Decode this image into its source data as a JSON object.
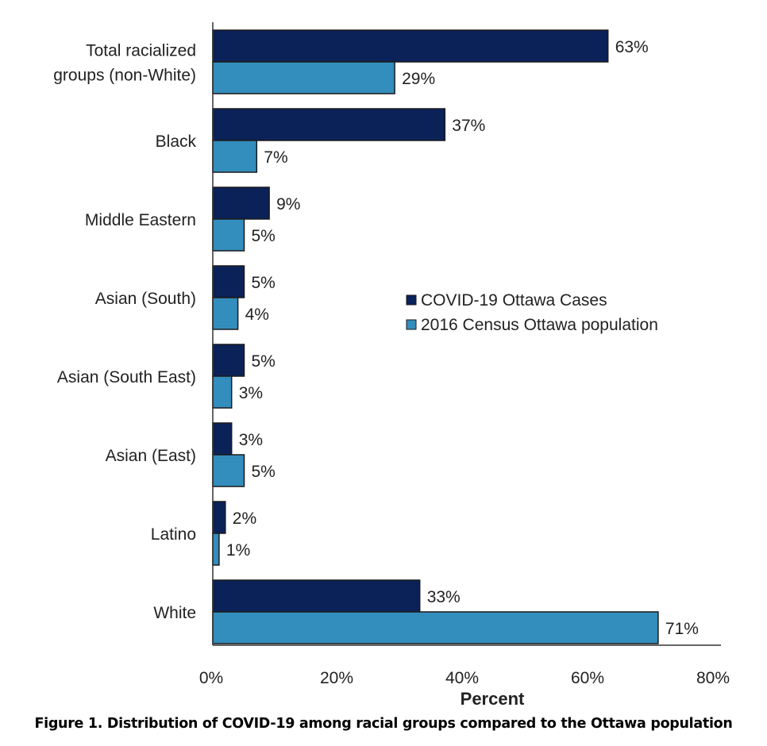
{
  "chart_data": {
    "type": "bar",
    "orientation": "horizontal",
    "categories": [
      "Total racialized groups (non-White)",
      "Black",
      "Middle Eastern",
      "Asian (South)",
      "Asian (South East)",
      "Asian (East)",
      "Latino",
      "White"
    ],
    "category_lines": [
      [
        "Total racialized",
        "groups (non-White)"
      ],
      [
        "Black"
      ],
      [
        "Middle Eastern"
      ],
      [
        "Asian (South)"
      ],
      [
        "Asian (South East)"
      ],
      [
        "Asian (East)"
      ],
      [
        "Latino"
      ],
      [
        "White"
      ]
    ],
    "series": [
      {
        "name": "COVID-19 Ottawa Cases",
        "color": "#0b2259",
        "values": [
          63,
          37,
          9,
          5,
          5,
          3,
          2,
          33
        ]
      },
      {
        "name": "2016 Census Ottawa population",
        "color": "#338dbd",
        "values": [
          29,
          7,
          5,
          4,
          3,
          5,
          1,
          71
        ]
      }
    ],
    "xlabel": "Percent",
    "xlim": [
      0,
      80
    ],
    "xticks": [
      0,
      20,
      40,
      60,
      80
    ],
    "tick_labels": [
      "0%",
      "20%",
      "40%",
      "60%",
      "80%"
    ],
    "data_label_suffix": "%",
    "grid": false,
    "legend_placement": "center-right"
  },
  "caption": "Figure 1. Distribution of COVID-19 among racial groups compared to the Ottawa population"
}
